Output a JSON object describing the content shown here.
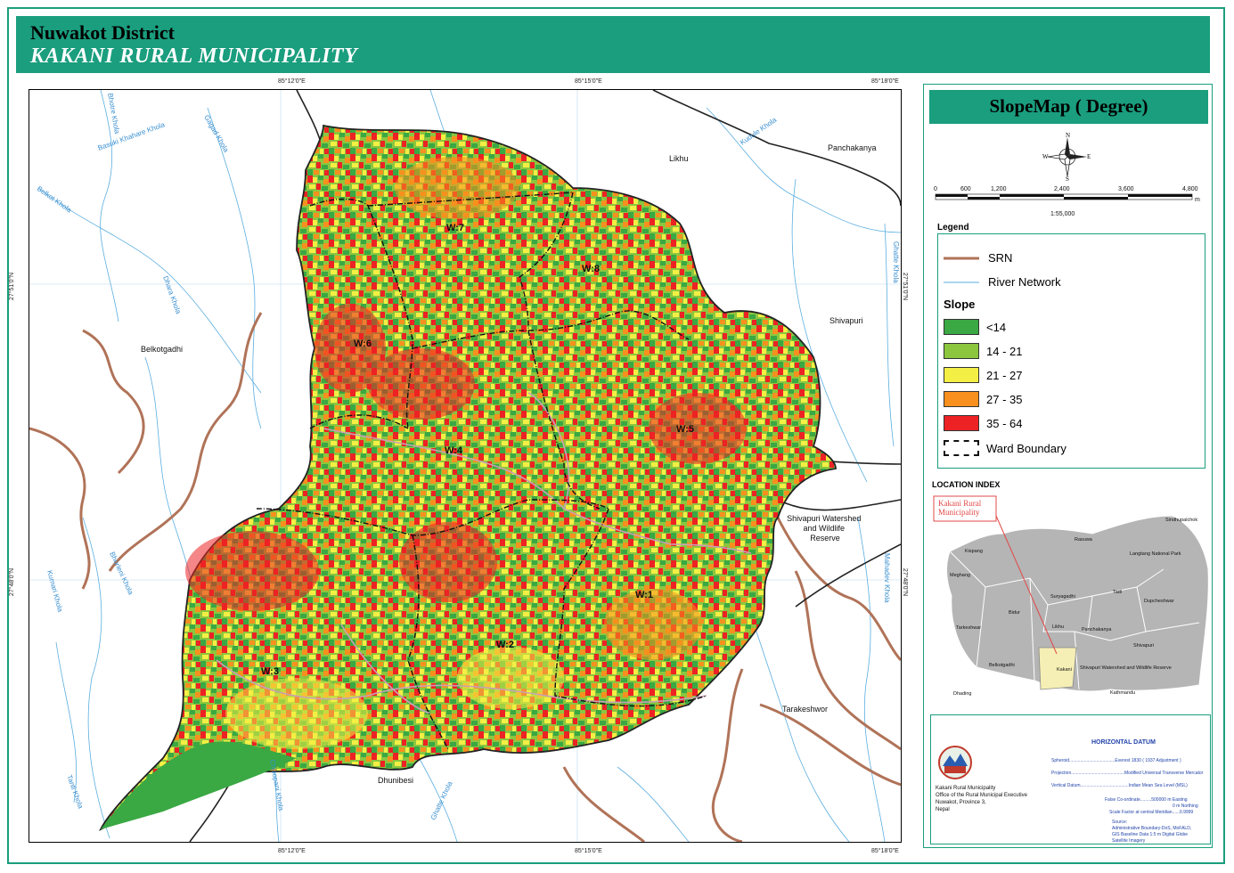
{
  "header": {
    "district": "Nuwakot District",
    "municipality": "KAKANI RURAL MUNICIPALITY"
  },
  "coords": {
    "top": [
      "85°12'0\"E",
      "85°15'0\"E",
      "85°18'0\"E"
    ],
    "bottom": [
      "85°12'0\"E",
      "85°15'0\"E",
      "85°18'0\"E"
    ],
    "left": [
      "27°51'0\"N",
      "27°48'0\"N"
    ],
    "right": [
      "27°51'0\"N",
      "27°48'0\"N"
    ]
  },
  "map": {
    "wards": [
      "W:7",
      "W:8",
      "W:6",
      "W:5",
      "W:4",
      "W:1",
      "W:2",
      "W:3"
    ],
    "places": [
      "Likhu",
      "Panchakanya",
      "Belkotgadhi",
      "Shivapuri",
      "Shivapuri Watershed and Wildlife Reserve",
      "Tarakeshwor",
      "Dhunibesi"
    ],
    "rivers": [
      "Bhotre Khola",
      "Basuki Khahare Khola",
      "Gagad Khola",
      "Belkot Khola",
      "Kudule Khola",
      "Ghatte Khola",
      "Mahadev Khola",
      "Dhara Khola",
      "Bhorleni Khola",
      "Kumari Khola",
      "Tanti Khola",
      "Ghatte Khola",
      "Chisopani Khola"
    ]
  },
  "panel": {
    "title": "SlopeMap ( Degree)",
    "north": {
      "n": "N",
      "s": "S",
      "e": "E",
      "w": "W"
    },
    "scale": {
      "ticks": [
        "0",
        "600",
        "1,200",
        "2,400",
        "3,600",
        "4,800"
      ],
      "unit": "m",
      "ratio": "1:55,000"
    },
    "legend_title": "Legend",
    "legend": {
      "srn": "SRN",
      "river": "River Network",
      "slope_title": "Slope",
      "ward": "Ward Boundary"
    },
    "slope_classes": [
      {
        "label": "<14",
        "color": "#3aa843"
      },
      {
        "label": "14 - 21",
        "color": "#8cc63f"
      },
      {
        "label": "21 - 27",
        "color": "#f4ef44"
      },
      {
        "label": "27 - 35",
        "color": "#f7901e"
      },
      {
        "label": "35 - 64",
        "color": "#ed2224"
      }
    ],
    "location_index": {
      "title": "LOCATION INDEX",
      "callout": "Kakani Rural Municipality",
      "names": [
        "Sindhupalchok",
        "Rasuwa",
        "Langtang National Park",
        "Kispang",
        "Meghang",
        "Suryagadhi",
        "Tadi",
        "Dupcheshwar",
        "Bidur",
        "Tarkeshwar",
        "Likhu",
        "Panchakanya",
        "Kakani",
        "Shivapuri",
        "Belkotgadhi",
        "Shivapuri Watershed and Wildlife Reserve",
        "Dhading",
        "Kathmandu"
      ]
    },
    "datum": {
      "title": "HORIZONTAL DATUM",
      "rows": [
        "Spheroid.....................................Everest 1830 ( 1937 Adjustment )",
        "Projection...........................................Modified Universal Transverse Mercator",
        "Vertical Datum.......................................Indian Mean Sea Level (MSL)"
      ],
      "false": [
        "False Co-ordinate.........500000 m Easting",
        "0 m Northing",
        "Scale Factor at central Meridian......0.9999"
      ],
      "source": [
        "Source:",
        "Administrative Boundary-DoS, MoFALD,",
        "GIS Baseline Data 1:5 m Digital Globe",
        "Satellite Imagery"
      ],
      "office": [
        "Kakani Rural Municipality",
        "Office of the Rural Municipal Executive",
        "Nuwakot, Province 3,",
        "Nepal"
      ]
    }
  }
}
